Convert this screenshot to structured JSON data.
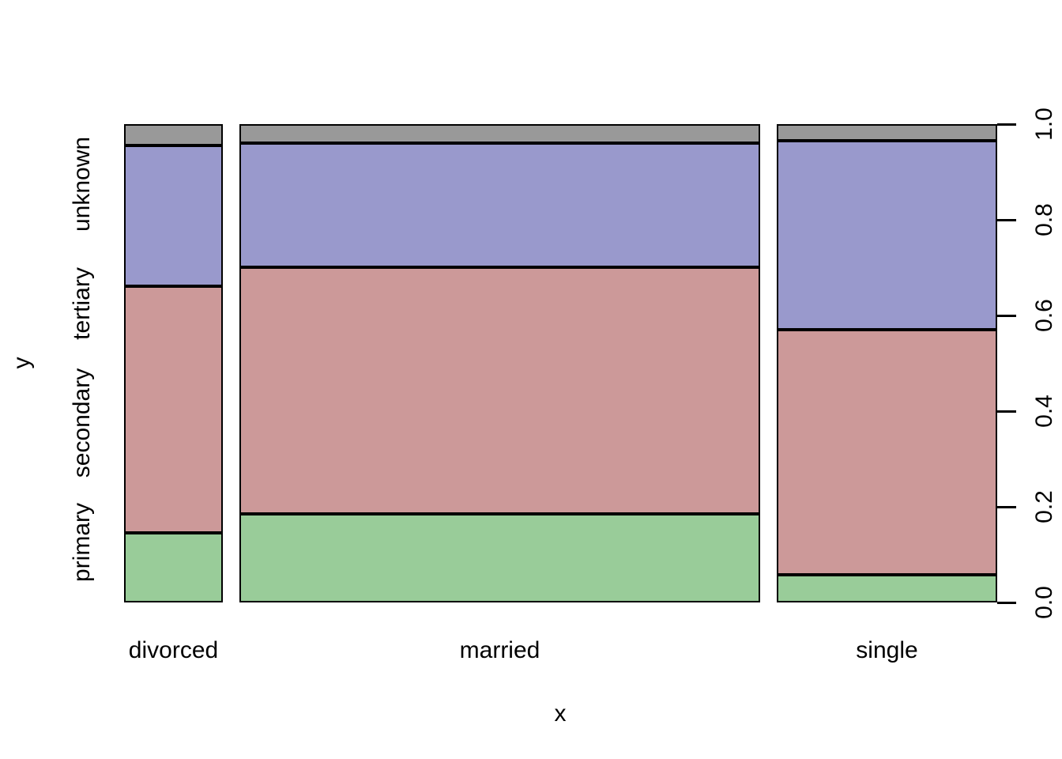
{
  "chart_data": {
    "type": "bar",
    "variant": "mosaic-plot (spineplot of two factors, proportions 0-1)",
    "title": "",
    "xlabel": "x",
    "ylabel": "y",
    "x_categories": [
      {
        "label": "divorced",
        "width_prop": 0.118
      },
      {
        "label": "married",
        "width_prop": 0.62
      },
      {
        "label": "single",
        "width_prop": 0.262
      }
    ],
    "y_categories_bottom_to_top": [
      "primary",
      "secondary",
      "tertiary",
      "unknown"
    ],
    "series": [
      {
        "name": "primary",
        "color": "#99CC99",
        "values": [
          0.147,
          0.185,
          0.058
        ]
      },
      {
        "name": "secondary",
        "color": "#CC9999",
        "values": [
          0.515,
          0.515,
          0.512
        ]
      },
      {
        "name": "tertiary",
        "color": "#9999CC",
        "values": [
          0.294,
          0.26,
          0.395
        ]
      },
      {
        "name": "unknown",
        "color": "#999999",
        "values": [
          0.044,
          0.04,
          0.035
        ]
      }
    ],
    "y_axis": {
      "side": "right",
      "range": [
        0.0,
        1.0
      ],
      "tick_labels": [
        "0.0",
        "0.2",
        "0.4",
        "0.6",
        "0.8",
        "1.0"
      ]
    },
    "grid": false,
    "legend": false,
    "segment_border_color": "#000000",
    "background": "#FFFFFF"
  }
}
